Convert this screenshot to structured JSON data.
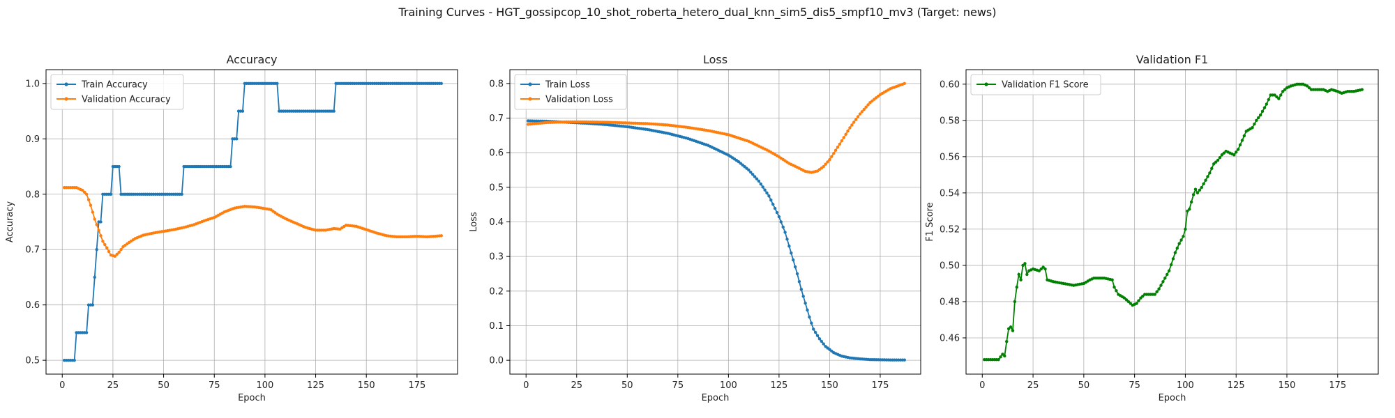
{
  "figure": {
    "title": "Training Curves - HGT_gossipcop_10_shot_roberta_hetero_dual_knn_sim5_dis5_smpf10_mv3 (Target: news)"
  },
  "chart_data": [
    {
      "type": "line",
      "title": "Accuracy",
      "xlabel": "Epoch",
      "ylabel": "Accuracy",
      "xlim": [
        -8,
        195
      ],
      "ylim": [
        0.475,
        1.025
      ],
      "xticks": [
        0,
        25,
        50,
        75,
        100,
        125,
        150,
        175
      ],
      "yticks": [
        0.5,
        0.6,
        0.7,
        0.8,
        0.9,
        1.0
      ],
      "ytick_labels": [
        "0.5",
        "0.6",
        "0.7",
        "0.8",
        "0.9",
        "1.0"
      ],
      "legend_position": "upper-left",
      "grid": true,
      "series": [
        {
          "name": "Train Accuracy",
          "color": "#1f77b4",
          "points": [
            [
              1,
              0.5
            ],
            [
              6,
              0.5
            ],
            [
              7,
              0.55
            ],
            [
              12,
              0.55
            ],
            [
              13,
              0.6
            ],
            [
              15,
              0.6
            ],
            [
              16,
              0.65
            ],
            [
              17,
              0.7
            ],
            [
              18,
              0.75
            ],
            [
              19,
              0.75
            ],
            [
              20,
              0.8
            ],
            [
              24,
              0.8
            ],
            [
              25,
              0.85
            ],
            [
              28,
              0.85
            ],
            [
              29,
              0.8
            ],
            [
              59,
              0.8
            ],
            [
              60,
              0.85
            ],
            [
              83,
              0.85
            ],
            [
              84,
              0.9
            ],
            [
              86,
              0.9
            ],
            [
              87,
              0.95
            ],
            [
              89,
              0.95
            ],
            [
              90,
              1.0
            ],
            [
              106,
              1.0
            ],
            [
              107,
              0.95
            ],
            [
              134,
              0.95
            ],
            [
              135,
              1.0
            ],
            [
              187,
              1.0
            ]
          ]
        },
        {
          "name": "Validation Accuracy",
          "color": "#ff7f0e",
          "points": [
            [
              1,
              0.812
            ],
            [
              7,
              0.812
            ],
            [
              10,
              0.807
            ],
            [
              12,
              0.8
            ],
            [
              14,
              0.78
            ],
            [
              16,
              0.755
            ],
            [
              18,
              0.735
            ],
            [
              20,
              0.715
            ],
            [
              22,
              0.703
            ],
            [
              24,
              0.69
            ],
            [
              26,
              0.688
            ],
            [
              28,
              0.695
            ],
            [
              30,
              0.705
            ],
            [
              33,
              0.713
            ],
            [
              36,
              0.72
            ],
            [
              40,
              0.726
            ],
            [
              45,
              0.73
            ],
            [
              50,
              0.733
            ],
            [
              55,
              0.736
            ],
            [
              60,
              0.74
            ],
            [
              65,
              0.745
            ],
            [
              70,
              0.752
            ],
            [
              75,
              0.758
            ],
            [
              80,
              0.768
            ],
            [
              85,
              0.775
            ],
            [
              90,
              0.778
            ],
            [
              95,
              0.777
            ],
            [
              100,
              0.774
            ],
            [
              103,
              0.772
            ],
            [
              106,
              0.764
            ],
            [
              110,
              0.756
            ],
            [
              115,
              0.748
            ],
            [
              120,
              0.74
            ],
            [
              125,
              0.735
            ],
            [
              130,
              0.735
            ],
            [
              134,
              0.738
            ],
            [
              137,
              0.737
            ],
            [
              140,
              0.744
            ],
            [
              145,
              0.742
            ],
            [
              150,
              0.736
            ],
            [
              155,
              0.73
            ],
            [
              160,
              0.725
            ],
            [
              165,
              0.723
            ],
            [
              170,
              0.723
            ],
            [
              175,
              0.724
            ],
            [
              180,
              0.723
            ],
            [
              187,
              0.725
            ]
          ]
        }
      ]
    },
    {
      "type": "line",
      "title": "Loss",
      "xlabel": "Epoch",
      "ylabel": "Loss",
      "xlim": [
        -8,
        195
      ],
      "ylim": [
        -0.04,
        0.84
      ],
      "xticks": [
        0,
        25,
        50,
        75,
        100,
        125,
        150,
        175
      ],
      "yticks": [
        0.0,
        0.1,
        0.2,
        0.3,
        0.4,
        0.5,
        0.6,
        0.7,
        0.8
      ],
      "ytick_labels": [
        "0.0",
        "0.1",
        "0.2",
        "0.3",
        "0.4",
        "0.5",
        "0.6",
        "0.7",
        "0.8"
      ],
      "legend_position": "upper-left",
      "grid": true,
      "series": [
        {
          "name": "Train Loss",
          "color": "#1f77b4",
          "points": [
            [
              1,
              0.692
            ],
            [
              10,
              0.691
            ],
            [
              20,
              0.688
            ],
            [
              30,
              0.685
            ],
            [
              40,
              0.681
            ],
            [
              50,
              0.675
            ],
            [
              60,
              0.667
            ],
            [
              70,
              0.656
            ],
            [
              80,
              0.641
            ],
            [
              90,
              0.621
            ],
            [
              100,
              0.593
            ],
            [
              105,
              0.574
            ],
            [
              110,
              0.55
            ],
            [
              115,
              0.518
            ],
            [
              120,
              0.475
            ],
            [
              125,
              0.415
            ],
            [
              128,
              0.37
            ],
            [
              130,
              0.33
            ],
            [
              132,
              0.29
            ],
            [
              134,
              0.25
            ],
            [
              136,
              0.205
            ],
            [
              138,
              0.165
            ],
            [
              140,
              0.125
            ],
            [
              142,
              0.09
            ],
            [
              145,
              0.062
            ],
            [
              148,
              0.04
            ],
            [
              152,
              0.022
            ],
            [
              156,
              0.012
            ],
            [
              160,
              0.007
            ],
            [
              165,
              0.004
            ],
            [
              170,
              0.002
            ],
            [
              180,
              0.001
            ],
            [
              187,
              0.001
            ]
          ]
        },
        {
          "name": "Validation Loss",
          "color": "#ff7f0e",
          "points": [
            [
              1,
              0.682
            ],
            [
              10,
              0.687
            ],
            [
              20,
              0.689
            ],
            [
              30,
              0.689
            ],
            [
              40,
              0.688
            ],
            [
              50,
              0.686
            ],
            [
              60,
              0.684
            ],
            [
              70,
              0.68
            ],
            [
              80,
              0.673
            ],
            [
              90,
              0.664
            ],
            [
              100,
              0.652
            ],
            [
              110,
              0.633
            ],
            [
              120,
              0.605
            ],
            [
              125,
              0.588
            ],
            [
              130,
              0.569
            ],
            [
              135,
              0.555
            ],
            [
              138,
              0.546
            ],
            [
              141,
              0.543
            ],
            [
              144,
              0.547
            ],
            [
              147,
              0.56
            ],
            [
              150,
              0.58
            ],
            [
              155,
              0.625
            ],
            [
              160,
              0.672
            ],
            [
              165,
              0.712
            ],
            [
              170,
              0.745
            ],
            [
              175,
              0.768
            ],
            [
              180,
              0.785
            ],
            [
              187,
              0.8
            ]
          ]
        }
      ]
    },
    {
      "type": "line",
      "title": "Validation F1",
      "xlabel": "Epoch",
      "ylabel": "F1 Score",
      "xlim": [
        -8,
        195
      ],
      "ylim": [
        0.44,
        0.608
      ],
      "xticks": [
        0,
        25,
        50,
        75,
        100,
        125,
        150,
        175
      ],
      "yticks": [
        0.46,
        0.48,
        0.5,
        0.52,
        0.54,
        0.56,
        0.58,
        0.6
      ],
      "ytick_labels": [
        "0.46",
        "0.48",
        "0.50",
        "0.52",
        "0.54",
        "0.56",
        "0.58",
        "0.60"
      ],
      "legend_position": "upper-left",
      "grid": true,
      "series": [
        {
          "name": "Validation F1 Score",
          "color": "#008000",
          "points": [
            [
              1,
              0.448
            ],
            [
              8,
              0.448
            ],
            [
              10,
              0.451
            ],
            [
              11,
              0.45
            ],
            [
              12,
              0.458
            ],
            [
              13,
              0.465
            ],
            [
              14,
              0.466
            ],
            [
              15,
              0.464
            ],
            [
              16,
              0.48
            ],
            [
              17,
              0.488
            ],
            [
              18,
              0.495
            ],
            [
              19,
              0.492
            ],
            [
              20,
              0.5
            ],
            [
              21,
              0.501
            ],
            [
              22,
              0.495
            ],
            [
              23,
              0.497
            ],
            [
              25,
              0.498
            ],
            [
              28,
              0.497
            ],
            [
              30,
              0.499
            ],
            [
              31,
              0.498
            ],
            [
              32,
              0.492
            ],
            [
              35,
              0.491
            ],
            [
              40,
              0.49
            ],
            [
              45,
              0.489
            ],
            [
              50,
              0.49
            ],
            [
              53,
              0.492
            ],
            [
              55,
              0.493
            ],
            [
              60,
              0.493
            ],
            [
              64,
              0.492
            ],
            [
              65,
              0.488
            ],
            [
              67,
              0.484
            ],
            [
              70,
              0.482
            ],
            [
              72,
              0.48
            ],
            [
              74,
              0.478
            ],
            [
              76,
              0.479
            ],
            [
              78,
              0.482
            ],
            [
              80,
              0.484
            ],
            [
              85,
              0.484
            ],
            [
              87,
              0.487
            ],
            [
              89,
              0.491
            ],
            [
              92,
              0.497
            ],
            [
              95,
              0.507
            ],
            [
              97,
              0.512
            ],
            [
              99,
              0.516
            ],
            [
              100,
              0.52
            ],
            [
              101,
              0.53
            ],
            [
              102,
              0.531
            ],
            [
              103,
              0.535
            ],
            [
              104,
              0.539
            ],
            [
              105,
              0.542
            ],
            [
              106,
              0.54
            ],
            [
              108,
              0.543
            ],
            [
              110,
              0.547
            ],
            [
              112,
              0.551
            ],
            [
              114,
              0.556
            ],
            [
              116,
              0.558
            ],
            [
              118,
              0.561
            ],
            [
              120,
              0.563
            ],
            [
              122,
              0.562
            ],
            [
              124,
              0.561
            ],
            [
              126,
              0.564
            ],
            [
              128,
              0.569
            ],
            [
              130,
              0.574
            ],
            [
              133,
              0.576
            ],
            [
              135,
              0.58
            ],
            [
              137,
              0.583
            ],
            [
              140,
              0.589
            ],
            [
              142,
              0.594
            ],
            [
              144,
              0.594
            ],
            [
              146,
              0.592
            ],
            [
              148,
              0.596
            ],
            [
              150,
              0.598
            ],
            [
              152,
              0.599
            ],
            [
              155,
              0.6
            ],
            [
              158,
              0.6
            ],
            [
              160,
              0.599
            ],
            [
              162,
              0.597
            ],
            [
              165,
              0.597
            ],
            [
              168,
              0.597
            ],
            [
              170,
              0.596
            ],
            [
              172,
              0.597
            ],
            [
              175,
              0.596
            ],
            [
              177,
              0.595
            ],
            [
              180,
              0.596
            ],
            [
              183,
              0.596
            ],
            [
              187,
              0.597
            ]
          ]
        }
      ]
    }
  ]
}
